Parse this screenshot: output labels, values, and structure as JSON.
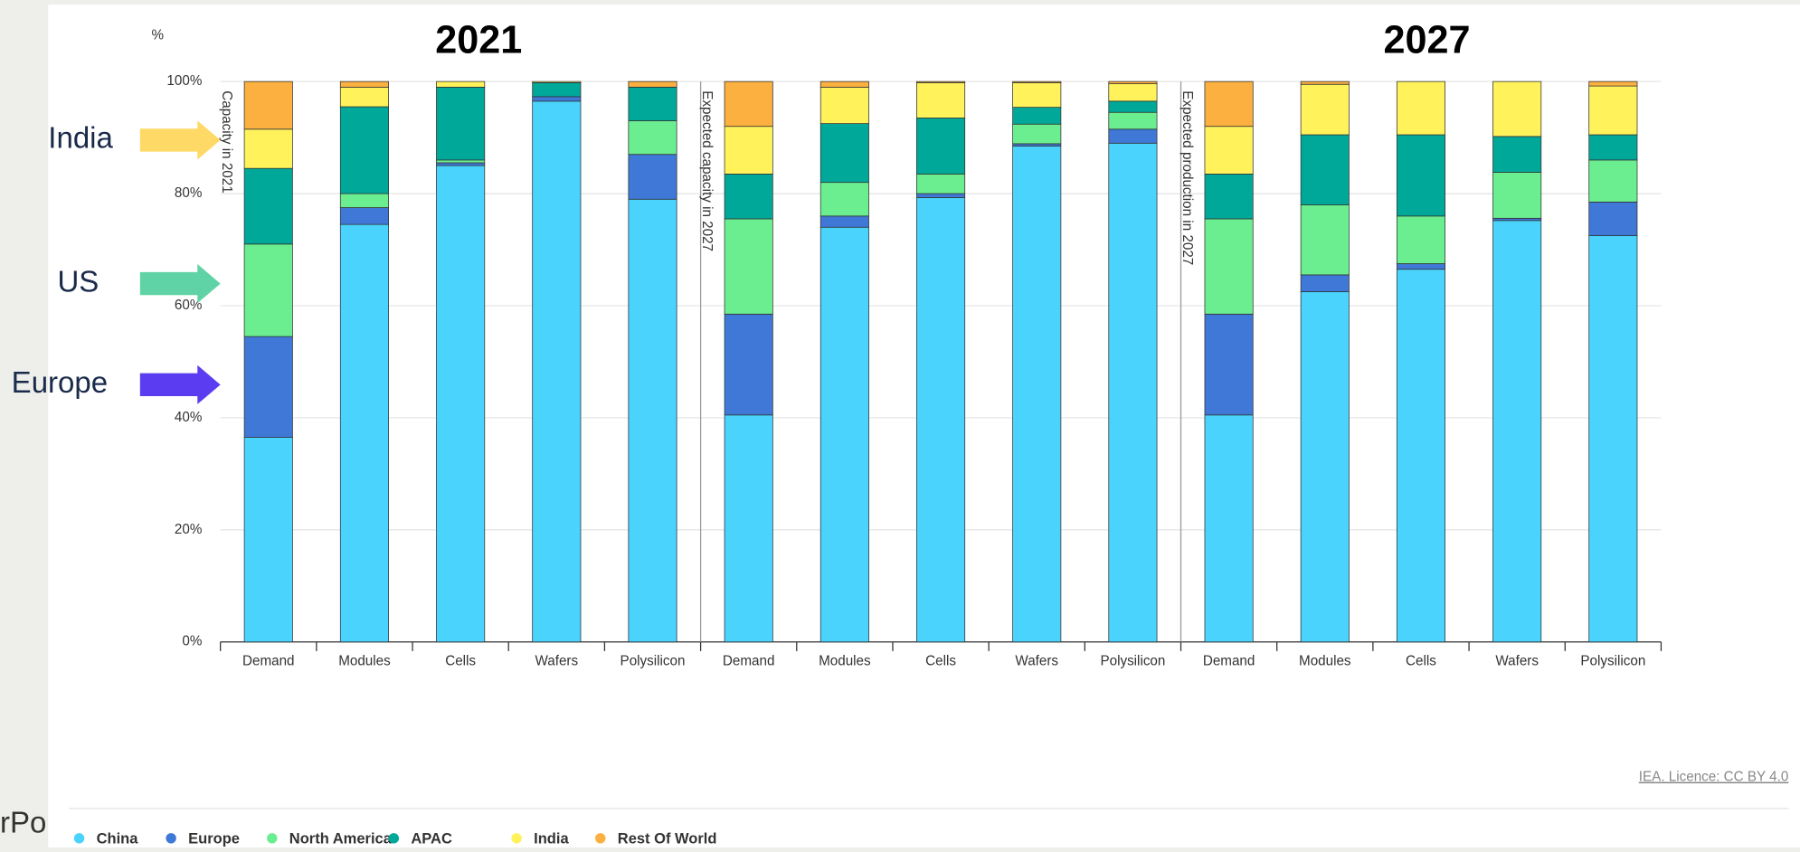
{
  "chart_data": {
    "type": "bar",
    "stacked": true,
    "titles": [
      "2021",
      "2027"
    ],
    "y_label": "%",
    "group_labels": [
      "Capacity in 2021",
      "Expected capacity in 2027",
      "Expected production in 2027"
    ],
    "categories": [
      "Demand",
      "Modules",
      "Cells",
      "Wafers",
      "Polysilicon",
      "Demand",
      "Modules",
      "Cells",
      "Wafers",
      "Polysilicon",
      "Demand",
      "Modules",
      "Cells",
      "Wafers",
      "Polysilicon"
    ],
    "series": [
      {
        "name": "China",
        "color": "#49d3fd",
        "values": [
          36.5,
          74.5,
          85,
          96.5,
          79,
          40.5,
          74,
          79.3,
          88.5,
          89,
          40.5,
          62.5,
          66.5,
          75.2,
          72.5
        ]
      },
      {
        "name": "Europe",
        "color": "#3f78d6",
        "values": [
          18,
          3,
          0.5,
          0.8,
          8,
          18,
          2,
          0.7,
          0.4,
          2.5,
          18,
          3,
          1,
          0.4,
          6
        ]
      },
      {
        "name": "North America",
        "color": "#6bee8f",
        "values": [
          16.5,
          2.5,
          0.5,
          0,
          6,
          17,
          6,
          3.5,
          3.5,
          3,
          17,
          12.5,
          8.5,
          8.2,
          7.5
        ]
      },
      {
        "name": "APAC",
        "color": "#00a89a",
        "values": [
          13.5,
          15.5,
          13,
          2.5,
          6,
          8,
          10.5,
          10,
          3,
          2,
          8,
          12.5,
          14.5,
          6.4,
          4.5
        ]
      },
      {
        "name": "India",
        "color": "#fff25b",
        "values": [
          7,
          3.5,
          1,
          0.2,
          0,
          8.5,
          6.5,
          6.3,
          4.4,
          3.1,
          8.5,
          9,
          9.5,
          9.8,
          8.7
        ]
      },
      {
        "name": "Rest Of World",
        "color": "#fbb040",
        "values": [
          8.5,
          1,
          0,
          0,
          1,
          8,
          1,
          0.2,
          0.2,
          0.4,
          8,
          0.5,
          0,
          0,
          0.8
        ]
      }
    ],
    "ylim": [
      0,
      100
    ],
    "yticks": [
      {
        "value": 0,
        "label": "0%"
      },
      {
        "value": 20,
        "label": "20%"
      },
      {
        "value": 40,
        "label": "40%"
      },
      {
        "value": 60,
        "label": "60%"
      },
      {
        "value": 80,
        "label": "80%"
      },
      {
        "value": 100,
        "label": "100%"
      }
    ],
    "grid": true,
    "annotations": [
      {
        "text": "India",
        "color": "#ffd966"
      },
      {
        "text": "US",
        "color": "#5fd3a5"
      },
      {
        "text": "Europe",
        "color": "#5b3cf0"
      }
    ],
    "source": "IEA. Licence: CC BY 4.0",
    "cropped_text": "rPo"
  }
}
